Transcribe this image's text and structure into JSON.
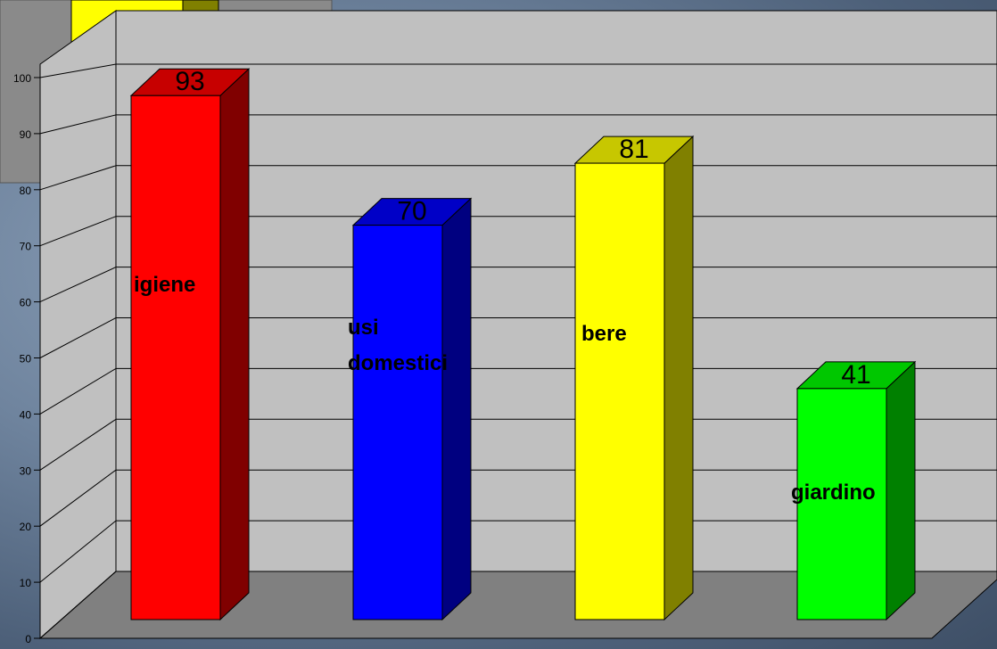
{
  "chart_data": {
    "type": "bar3d",
    "categories": [
      "igiene",
      "usi domestici",
      "bere",
      "giardino"
    ],
    "values": [
      93,
      70,
      81,
      41
    ],
    "colors": [
      "#ff0000",
      "#0000ff",
      "#ffff00",
      "#00ff00"
    ],
    "ylim": [
      0,
      100
    ],
    "yticks": [
      0,
      10,
      20,
      30,
      40,
      50,
      60,
      70,
      80,
      90,
      100
    ],
    "grid": true
  }
}
